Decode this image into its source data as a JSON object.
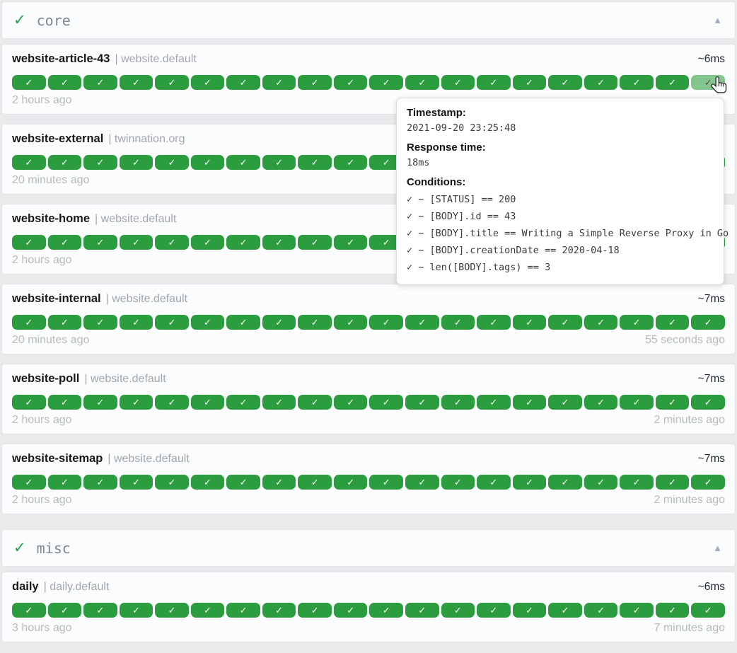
{
  "icons": {
    "group_status": "✓",
    "collapse": "▲",
    "badge_check": "✓"
  },
  "colors": {
    "success": "#2b9d3f",
    "success_hover": "#82c68e",
    "group_check": "#21a14c",
    "page_background": "#e9eaec",
    "card_background": "#fbfcfd"
  },
  "groups": [
    {
      "name": "core",
      "endpoints": [
        {
          "name": "website-article-43",
          "suffix": "| website.default",
          "response_time": "~6ms",
          "checks": 20,
          "hover_index": 19,
          "left_time": "2 hours ago",
          "right_time": ""
        },
        {
          "name": "website-external",
          "suffix": "| twinnation.org",
          "response_time": "",
          "checks": 20,
          "hover_index": -1,
          "left_time": "20 minutes ago",
          "right_time": ""
        },
        {
          "name": "website-home",
          "suffix": "| website.default",
          "response_time": "",
          "checks": 20,
          "hover_index": -1,
          "left_time": "2 hours ago",
          "right_time": ""
        },
        {
          "name": "website-internal",
          "suffix": "| website.default",
          "response_time": "~7ms",
          "checks": 20,
          "hover_index": -1,
          "left_time": "20 minutes ago",
          "right_time": "55 seconds ago"
        },
        {
          "name": "website-poll",
          "suffix": "| website.default",
          "response_time": "~7ms",
          "checks": 20,
          "hover_index": -1,
          "left_time": "2 hours ago",
          "right_time": "2 minutes ago"
        },
        {
          "name": "website-sitemap",
          "suffix": "| website.default",
          "response_time": "~7ms",
          "checks": 20,
          "hover_index": -1,
          "left_time": "2 hours ago",
          "right_time": "2 minutes ago"
        }
      ]
    },
    {
      "name": "misc",
      "endpoints": [
        {
          "name": "daily",
          "suffix": "| daily.default",
          "response_time": "~6ms",
          "checks": 20,
          "hover_index": -1,
          "left_time": "3 hours ago",
          "right_time": "7 minutes ago"
        }
      ]
    }
  ],
  "tooltip": {
    "timestamp_label": "Timestamp:",
    "timestamp_value": "2021-09-20 23:25:48",
    "response_label": "Response time:",
    "response_value": "18ms",
    "conditions_label": "Conditions:",
    "conditions": [
      "✓ ~ [STATUS] == 200",
      "✓ ~ [BODY].id == 43",
      "✓ ~ [BODY].title == Writing a Simple Reverse Proxy in Go",
      "✓ ~ [BODY].creationDate == 2020-04-18",
      "✓ ~ len([BODY].tags) == 3"
    ]
  }
}
